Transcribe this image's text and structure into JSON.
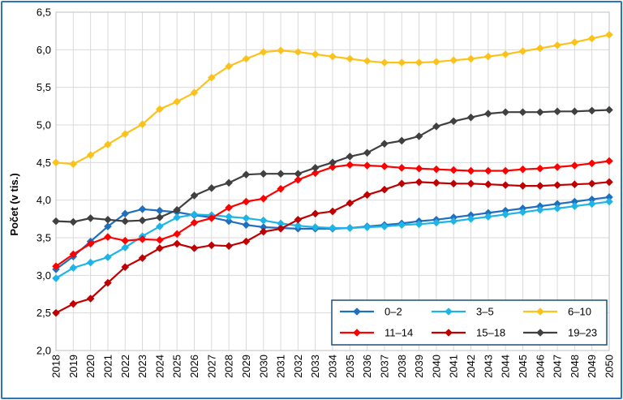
{
  "chart_data": {
    "type": "line",
    "title": "",
    "xlabel": "",
    "ylabel": "Počet (v tis.)",
    "ylim": [
      2.0,
      6.5
    ],
    "yticks": [
      "2,0",
      "2,5",
      "3,0",
      "3,5",
      "4,0",
      "4,5",
      "5,0",
      "5,5",
      "6,0",
      "6,5"
    ],
    "ytick_values": [
      2.0,
      2.5,
      3.0,
      3.5,
      4.0,
      4.5,
      5.0,
      5.5,
      6.0,
      6.5
    ],
    "grid": true,
    "legend": "bottom-right",
    "x": [
      "2018",
      "2019",
      "2020",
      "2021",
      "2022",
      "2023",
      "2024",
      "2025",
      "2026",
      "2027",
      "2028",
      "2029",
      "2030",
      "2031",
      "2032",
      "2033",
      "2034",
      "2035",
      "2036",
      "2037",
      "2038",
      "2039",
      "2040",
      "2041",
      "2042",
      "2043",
      "2044",
      "2045",
      "2046",
      "2047",
      "2048",
      "2049",
      "2050"
    ],
    "series": [
      {
        "name": "0–2",
        "color": "#1f6fbf",
        "values": [
          3.08,
          3.25,
          3.45,
          3.65,
          3.82,
          3.88,
          3.86,
          3.84,
          3.8,
          3.77,
          3.72,
          3.67,
          3.64,
          3.63,
          3.62,
          3.62,
          3.62,
          3.63,
          3.65,
          3.67,
          3.69,
          3.72,
          3.74,
          3.77,
          3.8,
          3.83,
          3.86,
          3.89,
          3.92,
          3.95,
          3.98,
          4.01,
          4.04
        ]
      },
      {
        "name": "3–5",
        "color": "#1fb4e8",
        "values": [
          2.96,
          3.1,
          3.17,
          3.24,
          3.37,
          3.52,
          3.65,
          3.77,
          3.81,
          3.8,
          3.78,
          3.76,
          3.73,
          3.69,
          3.66,
          3.64,
          3.63,
          3.63,
          3.64,
          3.65,
          3.67,
          3.68,
          3.7,
          3.72,
          3.75,
          3.78,
          3.81,
          3.84,
          3.87,
          3.89,
          3.92,
          3.95,
          3.98
        ]
      },
      {
        "name": "6–10",
        "color": "#fcc21c",
        "values": [
          4.5,
          4.48,
          4.6,
          4.74,
          4.88,
          5.01,
          5.21,
          5.31,
          5.43,
          5.63,
          5.78,
          5.88,
          5.97,
          5.99,
          5.97,
          5.94,
          5.91,
          5.88,
          5.85,
          5.83,
          5.83,
          5.83,
          5.84,
          5.86,
          5.88,
          5.91,
          5.94,
          5.98,
          6.02,
          6.06,
          6.1,
          6.15,
          6.2
        ]
      },
      {
        "name": "11–14",
        "color": "#ff0000",
        "values": [
          3.12,
          3.28,
          3.42,
          3.51,
          3.46,
          3.48,
          3.47,
          3.55,
          3.7,
          3.76,
          3.9,
          3.98,
          4.02,
          4.15,
          4.27,
          4.36,
          4.44,
          4.47,
          4.46,
          4.45,
          4.43,
          4.42,
          4.41,
          4.4,
          4.39,
          4.39,
          4.39,
          4.41,
          4.42,
          4.44,
          4.46,
          4.49,
          4.52
        ]
      },
      {
        "name": "15–18",
        "color": "#c00000",
        "values": [
          2.5,
          2.62,
          2.69,
          2.9,
          3.11,
          3.23,
          3.36,
          3.42,
          3.36,
          3.4,
          3.39,
          3.45,
          3.58,
          3.62,
          3.74,
          3.82,
          3.85,
          3.96,
          4.07,
          4.14,
          4.22,
          4.24,
          4.23,
          4.22,
          4.22,
          4.21,
          4.2,
          4.19,
          4.19,
          4.2,
          4.21,
          4.22,
          4.24
        ]
      },
      {
        "name": "19–23",
        "color": "#404040",
        "values": [
          3.72,
          3.71,
          3.76,
          3.74,
          3.72,
          3.73,
          3.77,
          3.87,
          4.06,
          4.16,
          4.23,
          4.34,
          4.35,
          4.35,
          4.35,
          4.43,
          4.5,
          4.58,
          4.63,
          4.75,
          4.79,
          4.85,
          4.98,
          5.05,
          5.1,
          5.15,
          5.17,
          5.17,
          5.17,
          5.18,
          5.18,
          5.19,
          5.2
        ]
      }
    ]
  }
}
